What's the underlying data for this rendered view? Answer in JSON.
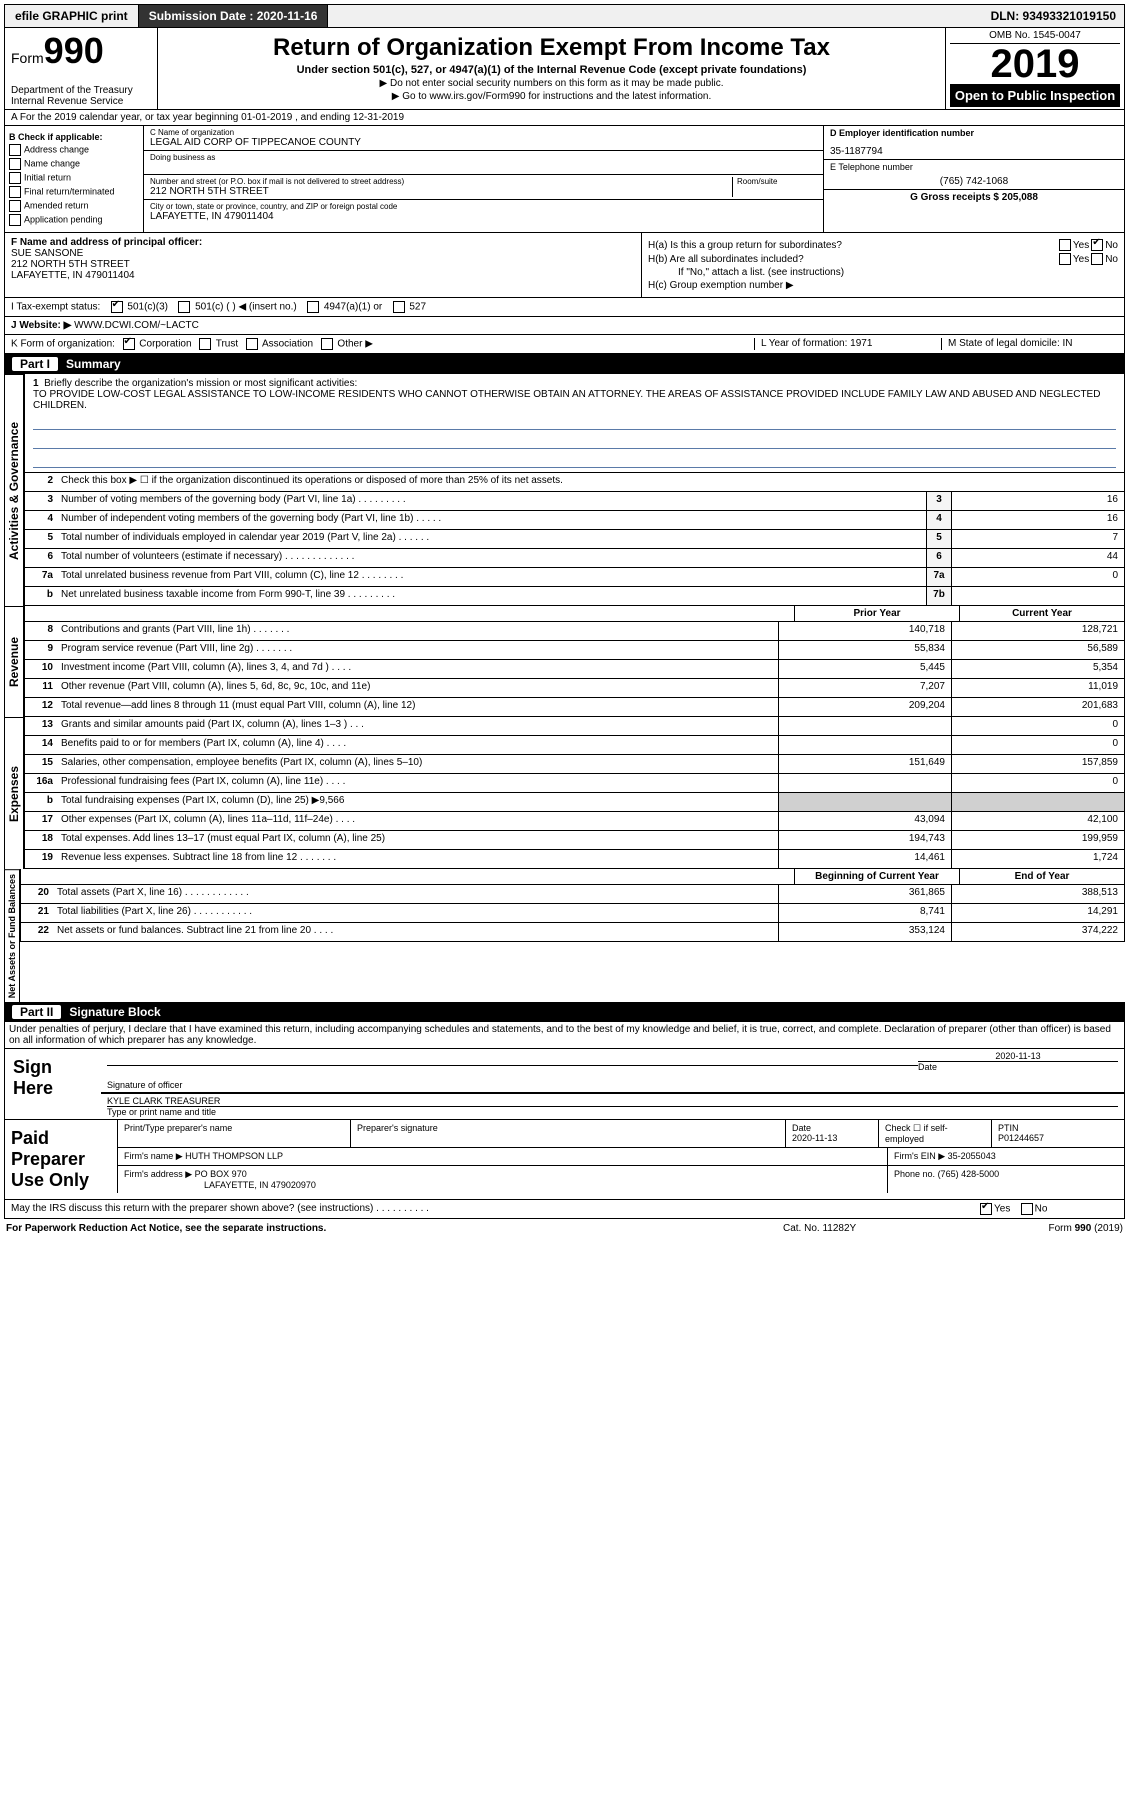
{
  "topbar": {
    "efile": "efile GRAPHIC print",
    "subdate_lbl": "Submission Date : 2020-11-16",
    "dln": "DLN: 93493321019150"
  },
  "header": {
    "form_word": "Form",
    "form_num": "990",
    "dept": "Department of the Treasury\nInternal Revenue Service",
    "title": "Return of Organization Exempt From Income Tax",
    "sub": "Under section 501(c), 527, or 4947(a)(1) of the Internal Revenue Code (except private foundations)",
    "warn": "▶ Do not enter social security numbers on this form as it may be made public.",
    "goto": "▶ Go to www.irs.gov/Form990 for instructions and the latest information.",
    "omb": "OMB No. 1545-0047",
    "year": "2019",
    "opi": "Open to Public Inspection"
  },
  "rowA": "A For the 2019 calendar year, or tax year beginning 01-01-2019   , and ending 12-31-2019",
  "colB": {
    "hdr": "B Check if applicable:",
    "items": [
      "Address change",
      "Name change",
      "Initial return",
      "Final return/terminated",
      "Amended return",
      "Application pending"
    ]
  },
  "colC": {
    "name_lbl": "C Name of organization",
    "name": "LEGAL AID CORP OF TIPPECANOE COUNTY",
    "dba_lbl": "Doing business as",
    "addr_lbl": "Number and street (or P.O. box if mail is not delivered to street address)",
    "room_lbl": "Room/suite",
    "addr": "212 NORTH 5TH STREET",
    "city_lbl": "City or town, state or province, country, and ZIP or foreign postal code",
    "city": "LAFAYETTE, IN  479011404"
  },
  "colDE": {
    "d_lbl": "D Employer identification number",
    "d_val": "35-1187794",
    "e_lbl": "E Telephone number",
    "e_val": "(765) 742-1068",
    "g_lbl": "G Gross receipts $ 205,088"
  },
  "rowF": {
    "f_lbl": "F  Name and address of principal officer:",
    "f_val": "SUE SANSONE\n212 NORTH 5TH STREET\nLAFAYETTE, IN  479011404",
    "ha": "H(a)  Is this a group return for subordinates?",
    "hb": "H(b)  Are all subordinates included?",
    "hb_note": "If \"No,\" attach a list. (see instructions)",
    "hc": "H(c)  Group exemption number ▶"
  },
  "rowI": {
    "lbl": "I  Tax-exempt status:",
    "opts": [
      "501(c)(3)",
      "501(c) (  ) ◀ (insert no.)",
      "4947(a)(1) or",
      "527"
    ]
  },
  "rowJ": {
    "lbl": "J  Website: ▶",
    "val": "WWW.DCWI.COM/~LACTC"
  },
  "rowK": {
    "lbl": "K Form of organization:",
    "opts": [
      "Corporation",
      "Trust",
      "Association",
      "Other ▶"
    ],
    "l_lbl": "L Year of formation: 1971",
    "m_lbl": "M State of legal domicile: IN"
  },
  "part1": {
    "num": "Part I",
    "title": "Summary"
  },
  "mission": {
    "num": "1",
    "lbl": "Briefly describe the organization's mission or most significant activities:",
    "txt": "TO PROVIDE LOW-COST LEGAL ASSISTANCE TO LOW-INCOME RESIDENTS WHO CANNOT OTHERWISE OBTAIN AN ATTORNEY. THE AREAS OF ASSISTANCE PROVIDED INCLUDE FAMILY LAW AND ABUSED AND NEGLECTED CHILDREN."
  },
  "gov": {
    "tab": "Activities & Governance",
    "l2": "Check this box ▶ ☐  if the organization discontinued its operations or disposed of more than 25% of its net assets.",
    "lines": [
      {
        "n": "3",
        "t": "Number of voting members of the governing body (Part VI, line 1a)   .    .    .    .    .    .    .    .    .",
        "b": "3",
        "v": "16"
      },
      {
        "n": "4",
        "t": "Number of independent voting members of the governing body (Part VI, line 1b)   .    .    .    .    .",
        "b": "4",
        "v": "16"
      },
      {
        "n": "5",
        "t": "Total number of individuals employed in calendar year 2019 (Part V, line 2a)   .    .    .    .    .    .",
        "b": "5",
        "v": "7"
      },
      {
        "n": "6",
        "t": "Total number of volunteers (estimate if necessary)    .    .    .    .    .    .    .    .    .    .    .    .    .",
        "b": "6",
        "v": "44"
      },
      {
        "n": "7a",
        "t": "Total unrelated business revenue from Part VIII, column (C), line 12   .    .    .    .    .    .    .    .",
        "b": "7a",
        "v": "0"
      },
      {
        "n": "b",
        "t": "Net unrelated business taxable income from Form 990-T, line 39    .    .    .    .    .    .    .    .    .",
        "b": "7b",
        "v": ""
      }
    ]
  },
  "rev": {
    "tab": "Revenue",
    "hdr_prior": "Prior Year",
    "hdr_curr": "Current Year",
    "lines": [
      {
        "n": "8",
        "t": "Contributions and grants (Part VIII, line 1h)    .    .    .    .    .    .    .",
        "p": "140,718",
        "c": "128,721"
      },
      {
        "n": "9",
        "t": "Program service revenue (Part VIII, line 2g)    .    .    .    .    .    .    .",
        "p": "55,834",
        "c": "56,589"
      },
      {
        "n": "10",
        "t": "Investment income (Part VIII, column (A), lines 3, 4, and 7d )   .    .    .    .",
        "p": "5,445",
        "c": "5,354"
      },
      {
        "n": "11",
        "t": "Other revenue (Part VIII, column (A), lines 5, 6d, 8c, 9c, 10c, and 11e)",
        "p": "7,207",
        "c": "11,019"
      },
      {
        "n": "12",
        "t": "Total revenue—add lines 8 through 11 (must equal Part VIII, column (A), line 12)",
        "p": "209,204",
        "c": "201,683"
      }
    ]
  },
  "exp": {
    "tab": "Expenses",
    "lines": [
      {
        "n": "13",
        "t": "Grants and similar amounts paid (Part IX, column (A), lines 1–3 )   .    .    .",
        "p": "",
        "c": "0"
      },
      {
        "n": "14",
        "t": "Benefits paid to or for members (Part IX, column (A), line 4)   .    .    .    .",
        "p": "",
        "c": "0"
      },
      {
        "n": "15",
        "t": "Salaries, other compensation, employee benefits (Part IX, column (A), lines 5–10)",
        "p": "151,649",
        "c": "157,859"
      },
      {
        "n": "16a",
        "t": "Professional fundraising fees (Part IX, column (A), line 11e)   .    .    .    .",
        "p": "",
        "c": "0"
      },
      {
        "n": "b",
        "t": "Total fundraising expenses (Part IX, column (D), line 25) ▶9,566",
        "p": "shade",
        "c": "shade"
      },
      {
        "n": "17",
        "t": "Other expenses (Part IX, column (A), lines 11a–11d, 11f–24e)   .    .    .    .",
        "p": "43,094",
        "c": "42,100"
      },
      {
        "n": "18",
        "t": "Total expenses. Add lines 13–17 (must equal Part IX, column (A), line 25)",
        "p": "194,743",
        "c": "199,959"
      },
      {
        "n": "19",
        "t": "Revenue less expenses. Subtract line 18 from line 12   .    .    .    .    .    .    .",
        "p": "14,461",
        "c": "1,724"
      }
    ]
  },
  "net": {
    "tab": "Net Assets or Fund Balances",
    "hdr_beg": "Beginning of Current Year",
    "hdr_end": "End of Year",
    "lines": [
      {
        "n": "20",
        "t": "Total assets (Part X, line 16)   .    .    .    .    .    .    .    .    .    .    .    .",
        "p": "361,865",
        "c": "388,513"
      },
      {
        "n": "21",
        "t": "Total liabilities (Part X, line 26)   .    .    .    .    .    .    .    .    .    .    .",
        "p": "8,741",
        "c": "14,291"
      },
      {
        "n": "22",
        "t": "Net assets or fund balances. Subtract line 21 from line 20   .    .    .    .",
        "p": "353,124",
        "c": "374,222"
      }
    ]
  },
  "part2": {
    "num": "Part II",
    "title": "Signature Block"
  },
  "sig": {
    "decl": "Under penalties of perjury, I declare that I have examined this return, including accompanying schedules and statements, and to the best of my knowledge and belief, it is true, correct, and complete. Declaration of preparer (other than officer) is based on all information of which preparer has any knowledge.",
    "here": "Sign Here",
    "sig_lbl": "Signature of officer",
    "date_lbl": "Date",
    "date": "2020-11-13",
    "name": "KYLE CLARK  TREASURER",
    "name_lbl": "Type or print name and title"
  },
  "prep": {
    "lbl": "Paid Preparer Use Only",
    "h1": "Print/Type preparer's name",
    "h2": "Preparer's signature",
    "h3": "Date",
    "h3v": "2020-11-13",
    "h4": "Check ☐ if self-employed",
    "h5": "PTIN",
    "h5v": "P01244657",
    "firm_lbl": "Firm's name    ▶",
    "firm": "HUTH THOMPSON LLP",
    "ein_lbl": "Firm's EIN ▶",
    "ein": "35-2055043",
    "addr_lbl": "Firm's address ▶",
    "addr1": "PO BOX 970",
    "addr2": "LAFAYETTE, IN  479020970",
    "phone_lbl": "Phone no.",
    "phone": "(765) 428-5000"
  },
  "irs_discuss": "May the IRS discuss this return with the preparer shown above? (see instructions)    .    .    .    .    .    .    .    .    .    .",
  "footer": {
    "l": "For Paperwork Reduction Act Notice, see the separate instructions.",
    "m": "Cat. No. 11282Y",
    "r": "Form 990 (2019)"
  }
}
